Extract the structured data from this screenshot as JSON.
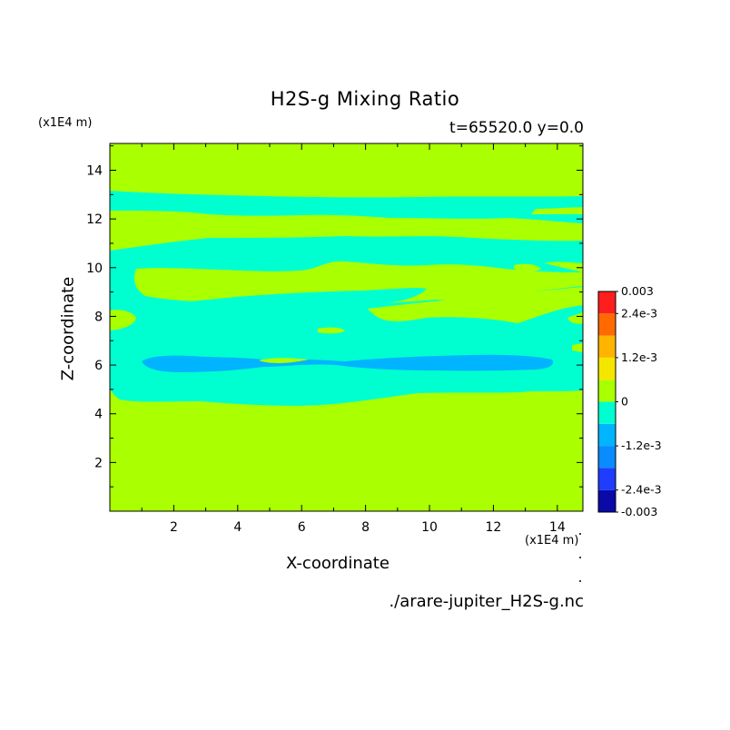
{
  "chart_data": {
    "type": "heatmap",
    "title": "H2S-g Mixing Ratio",
    "subtitle": "t=65520.0 y=0.0",
    "xlabel": "X-coordinate",
    "ylabel": "Z-coordinate",
    "x_unit": "(x1E4 m)",
    "y_unit": "(x1E4 m)",
    "xlim": [
      0,
      14.8
    ],
    "ylim": [
      0,
      15.1
    ],
    "x_ticks": [
      "2",
      "4",
      "6",
      "8",
      "10",
      "12",
      "14"
    ],
    "y_ticks": [
      "2",
      "4",
      "6",
      "8",
      "10",
      "12",
      "14"
    ],
    "source_file": "./arare-jupiter_H2S-g.nc",
    "colorbar": {
      "range": [
        -0.003,
        0.003
      ],
      "tick_labels": [
        "0.003",
        "2.4e-3",
        "1.2e-3",
        "0",
        "-1.2e-3",
        "-2.4e-3",
        "-0.003"
      ],
      "levels": [
        {
          "lower": -0.003,
          "upper": -0.0024,
          "color": "#0a0aa8"
        },
        {
          "lower": -0.0024,
          "upper": -0.0018,
          "color": "#1f3cff"
        },
        {
          "lower": -0.0018,
          "upper": -0.0012,
          "color": "#0a8cff"
        },
        {
          "lower": -0.0012,
          "upper": -0.0006,
          "color": "#00b4ff"
        },
        {
          "lower": -0.0006,
          "upper": 0.0,
          "color": "#00ffd0"
        },
        {
          "lower": 0.0,
          "upper": 0.0006,
          "color": "#aaff00"
        },
        {
          "lower": 0.0006,
          "upper": 0.0012,
          "color": "#f5e600"
        },
        {
          "lower": 0.0012,
          "upper": 0.0018,
          "color": "#ffb400"
        },
        {
          "lower": 0.0018,
          "upper": 0.0024,
          "color": "#ff6a00"
        },
        {
          "lower": 0.0024,
          "upper": 0.003,
          "color": "#ff1e1e"
        }
      ]
    },
    "regions": [
      {
        "level": "0 to 6e-4",
        "description": "background, most of domain"
      },
      {
        "level": "-6e-4 to 0",
        "description": "cyan band roughly z=4.5 to 12.8"
      },
      {
        "level": "-1.2e-3 to -6e-4",
        "description": "blue streaks near z=6"
      }
    ]
  }
}
